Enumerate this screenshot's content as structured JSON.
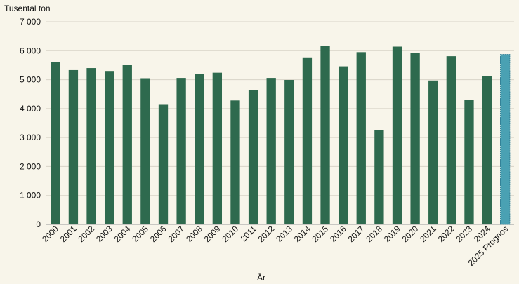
{
  "chart_data": {
    "type": "bar",
    "ylabel": "Tusental ton",
    "xlabel": "År",
    "ylim": [
      0,
      7000
    ],
    "yticks": [
      0,
      1000,
      2000,
      3000,
      4000,
      5000,
      6000,
      7000
    ],
    "ytick_labels": [
      "0",
      "1 000",
      "2 000",
      "3 000",
      "4 000",
      "5 000",
      "6 000",
      "7 000"
    ],
    "grid": true,
    "categories": [
      "2000",
      "2001",
      "2002",
      "2003",
      "2004",
      "2005",
      "2006",
      "2007",
      "2008",
      "2009",
      "2010",
      "2011",
      "2012",
      "2013",
      "2014",
      "2015",
      "2016",
      "2017",
      "2018",
      "2019",
      "2020",
      "2021",
      "2022",
      "2023",
      "2024",
      "2025 Prognos"
    ],
    "values": [
      5600,
      5330,
      5400,
      5300,
      5500,
      5050,
      4130,
      5060,
      5190,
      5240,
      4280,
      4630,
      5060,
      4990,
      5770,
      6160,
      5460,
      5950,
      3250,
      6140,
      5930,
      4970,
      5810,
      4310,
      5130,
      5870
    ],
    "colors": {
      "actual": "#2e6a4e",
      "forecast": "#4aa1b3",
      "forecast_edge": "#2e7f96",
      "grid": "#d8d4c8",
      "axis": "#999999"
    }
  }
}
